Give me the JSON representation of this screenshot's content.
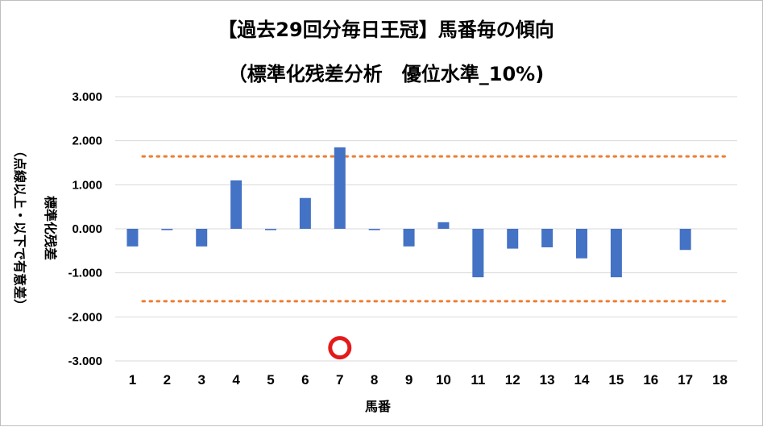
{
  "chart_data": {
    "type": "bar",
    "title": "【過去29回分毎日王冠】馬番毎の傾向",
    "subtitle": "（標準化残差分析　優位水準_10%)",
    "xlabel": "馬番",
    "ylabel": "標準化残差",
    "ylabel_note": "（点線以上・以下で有意差）",
    "categories": [
      "1",
      "2",
      "3",
      "4",
      "5",
      "6",
      "7",
      "8",
      "9",
      "10",
      "11",
      "12",
      "13",
      "14",
      "15",
      "16",
      "17",
      "18"
    ],
    "values": [
      -0.4,
      -0.03,
      -0.4,
      1.1,
      -0.03,
      0.7,
      1.85,
      -0.03,
      -0.4,
      0.15,
      -1.1,
      -0.45,
      -0.42,
      -0.67,
      -1.1,
      0.0,
      -0.48,
      0.0
    ],
    "ylim": [
      -3.0,
      3.0
    ],
    "yticks": [
      "3.000",
      "2.000",
      "1.000",
      "0.000",
      "-1.000",
      "-2.000",
      "-3.000"
    ],
    "reference_lines": [
      1.645,
      -1.645
    ],
    "marker": {
      "category": "7",
      "y": -2.7,
      "shape": "circle"
    },
    "grid": true,
    "colors": {
      "bar": "#4472C4",
      "reference_line": "#ED7D31",
      "grid": "#d9d9d9",
      "marker_ring": "#e31a1c"
    }
  }
}
